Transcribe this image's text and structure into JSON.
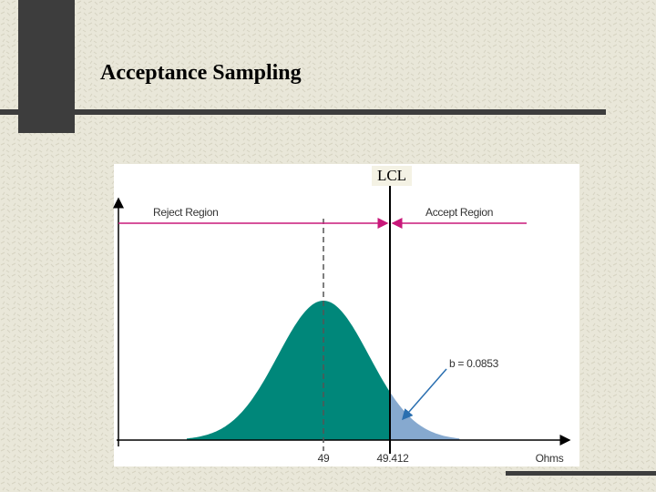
{
  "header": {
    "title": "Acceptance Sampling"
  },
  "figure": {
    "lcl_label": "LCL",
    "reject_label": "Reject Region",
    "accept_label": "Accept Region",
    "beta_label": "b = 0.0853",
    "mean_label": "49",
    "limit_label": "49.412",
    "axis_label": "Ohms"
  }
}
